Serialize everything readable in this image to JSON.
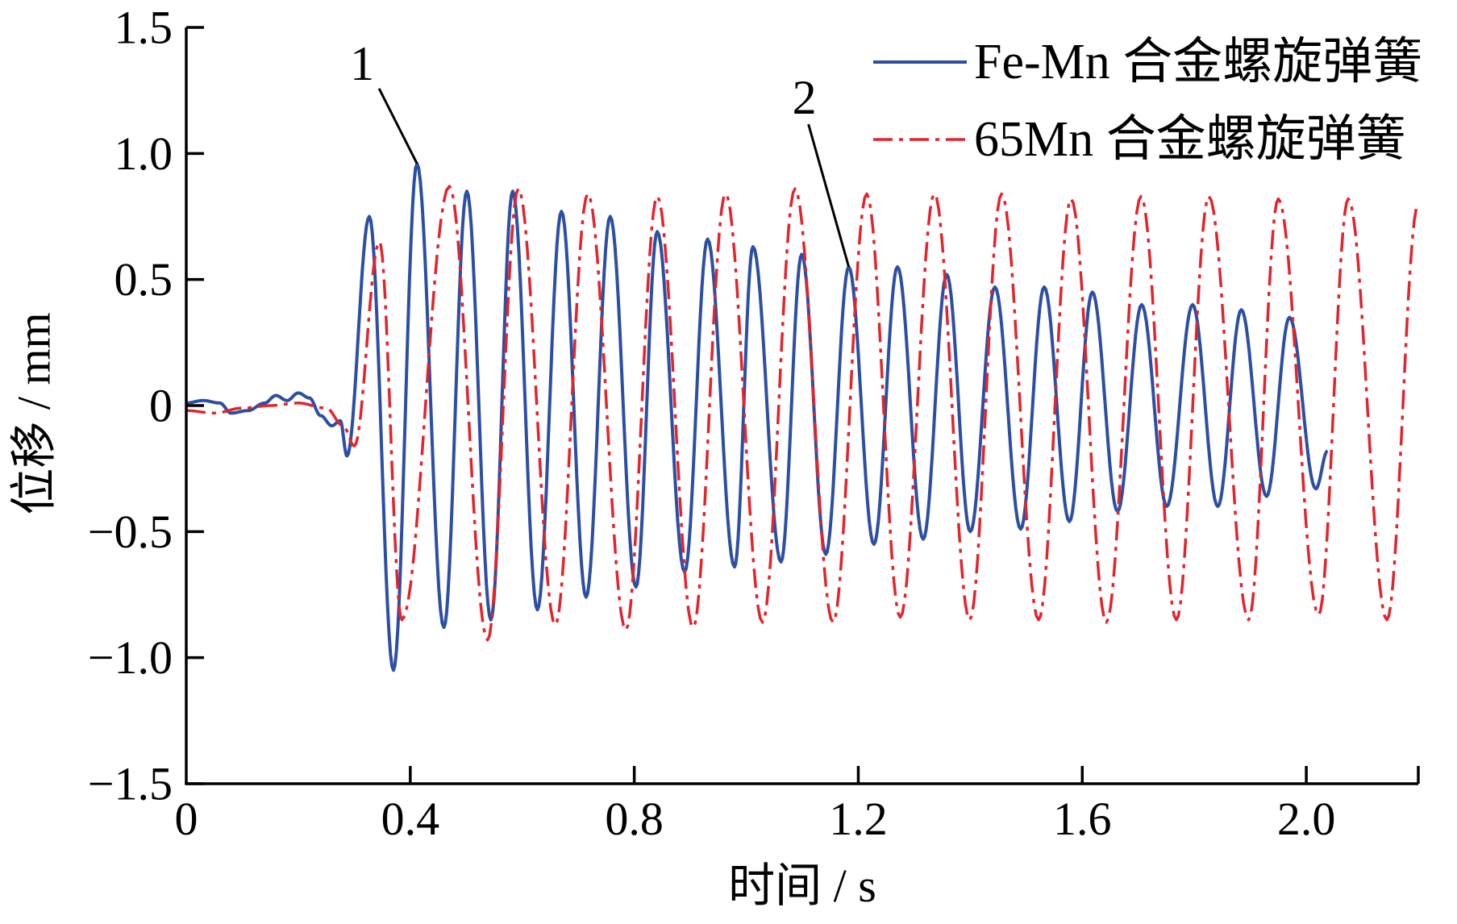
{
  "chart_data": {
    "type": "line",
    "xlabel": "时间 / s",
    "ylabel": "位移 / mm",
    "xlim": [
      0,
      2.2
    ],
    "ylim": [
      -1.5,
      1.5
    ],
    "xticks": [
      0,
      0.4,
      0.8,
      1.2,
      1.6,
      2.0
    ],
    "xtick_labels": [
      "0",
      "0.4",
      "0.8",
      "1.2",
      "1.6",
      "2.0"
    ],
    "yticks": [
      1.5,
      1.0,
      0.5,
      0,
      -0.5,
      -1.0,
      -1.5
    ],
    "ytick_labels": [
      "1.5",
      "1.0",
      "0.5",
      "0",
      "−0.5",
      "−1.0",
      "−1.5"
    ],
    "grid": false,
    "legend_position": "top-right",
    "series": [
      {
        "name": "Fe-Mn 合金螺旋弹簧",
        "color": "#2c4fa3",
        "line_style": "solid",
        "x": [
          0,
          0.03,
          0.06,
          0.08,
          0.11,
          0.14,
          0.16,
          0.18,
          0.2,
          0.22,
          0.24,
          0.26,
          0.275,
          0.287,
          0.327,
          0.37,
          0.412,
          0.46,
          0.501,
          0.544,
          0.583,
          0.627,
          0.67,
          0.714,
          0.757,
          0.803,
          0.841,
          0.89,
          0.931,
          0.979,
          1.012,
          1.062,
          1.099,
          1.142,
          1.183,
          1.228,
          1.27,
          1.316,
          1.358,
          1.4,
          1.444,
          1.49,
          1.532,
          1.577,
          1.618,
          1.663,
          1.706,
          1.751,
          1.797,
          1.842,
          1.884,
          1.929,
          1.97,
          2.017,
          2.038
        ],
        "y": [
          0.01,
          0.02,
          0.01,
          -0.03,
          -0.02,
          0.01,
          0.04,
          0.02,
          0.05,
          0.03,
          -0.04,
          -0.08,
          -0.06,
          -0.2,
          0.75,
          -1.05,
          0.96,
          -0.88,
          0.85,
          -0.85,
          0.85,
          -0.81,
          0.77,
          -0.76,
          0.75,
          -0.72,
          0.69,
          -0.66,
          0.66,
          -0.64,
          0.63,
          -0.62,
          0.6,
          -0.59,
          0.55,
          -0.55,
          0.55,
          -0.53,
          0.52,
          -0.5,
          0.47,
          -0.49,
          0.47,
          -0.46,
          0.45,
          -0.42,
          0.4,
          -0.4,
          0.4,
          -0.4,
          0.38,
          -0.36,
          0.35,
          -0.33,
          -0.18
        ]
      },
      {
        "name": "65Mn 合金螺旋弹簧",
        "color": "#e3242b",
        "line_style": "dash-dot",
        "x": [
          0,
          0.05,
          0.1,
          0.15,
          0.2,
          0.25,
          0.28,
          0.3,
          0.345,
          0.385,
          0.47,
          0.538,
          0.593,
          0.659,
          0.717,
          0.785,
          0.841,
          0.905,
          0.963,
          1.029,
          1.087,
          1.155,
          1.215,
          1.275,
          1.336,
          1.399,
          1.456,
          1.522,
          1.58,
          1.643,
          1.705,
          1.768,
          1.826,
          1.897,
          1.95,
          2.022,
          2.075,
          2.144,
          2.2
        ],
        "y": [
          -0.02,
          -0.03,
          -0.01,
          0.0,
          0.01,
          -0.01,
          -0.08,
          -0.16,
          0.65,
          -0.85,
          0.87,
          -0.93,
          0.86,
          -0.87,
          0.84,
          -0.89,
          0.83,
          -0.88,
          0.84,
          -0.86,
          0.86,
          -0.86,
          0.84,
          -0.84,
          0.84,
          -0.85,
          0.84,
          -0.85,
          0.82,
          -0.86,
          0.83,
          -0.85,
          0.83,
          -0.85,
          0.82,
          -0.83,
          0.82,
          -0.85,
          0.8
        ]
      }
    ],
    "annotations": [
      {
        "text": "1",
        "x": 0.412,
        "y": 0.96
      },
      {
        "text": "2",
        "x": 1.183,
        "y": 0.55
      }
    ]
  }
}
